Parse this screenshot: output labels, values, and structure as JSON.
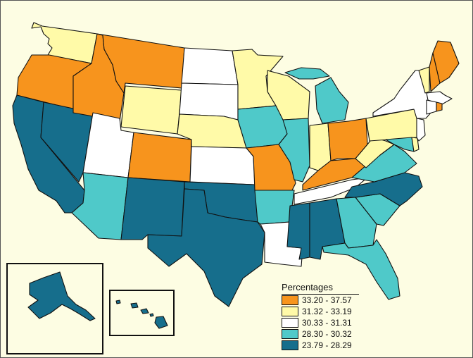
{
  "legend": {
    "title": "Percentages",
    "bins": [
      {
        "label": "33.20 - 37.57",
        "color": "#f7941d",
        "key": "c1"
      },
      {
        "label": "31.32 - 33.19",
        "color": "#fffaa8",
        "key": "c2"
      },
      {
        "label": "30.33 - 31.31",
        "color": "#ffffff",
        "key": "c3"
      },
      {
        "label": "28.30 - 30.32",
        "color": "#4fc9c9",
        "key": "c4"
      },
      {
        "label": "23.79 - 28.29",
        "color": "#166e8c",
        "key": "c5"
      }
    ]
  },
  "states": {
    "WA": "c2",
    "OR": "c1",
    "CA": "c5",
    "NV": "c5",
    "ID": "c1",
    "MT": "c1",
    "WY": "c2",
    "UT": "c3",
    "CO": "c1",
    "AZ": "c4",
    "NM": "c5",
    "ND": "c3",
    "SD": "c3",
    "NE": "c2",
    "KS": "c3",
    "OK": "c5",
    "TX": "c5",
    "MN": "c2",
    "IA": "c4",
    "MO": "c1",
    "AR": "c4",
    "LA": "c3",
    "WI": "c2",
    "IL": "c4",
    "MI": "c4",
    "IN": "c2",
    "OH": "c1",
    "KY": "c1",
    "TN": "c3",
    "MS": "c5",
    "AL": "c5",
    "GA": "c4",
    "FL": "c4",
    "SC": "c4",
    "NC": "c5",
    "VA": "c4",
    "WV": "c2",
    "PA": "c2",
    "NY": "c3",
    "VT": "c2",
    "NH": "c1",
    "ME": "c1",
    "MA": "c3",
    "RI": "c1",
    "CT": "c3",
    "NJ": "c3",
    "DE": "c2",
    "MD": "c4",
    "AK": "c5",
    "HI": "c5"
  }
}
